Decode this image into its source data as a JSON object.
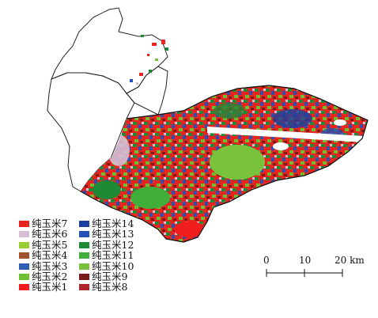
{
  "legend": {
    "col1": [
      {
        "label": "纯玉米7",
        "color": "#e8241f"
      },
      {
        "label": "纯玉米6",
        "color": "#d4bfd6"
      },
      {
        "label": "纯玉米5",
        "color": "#9acd32"
      },
      {
        "label": "纯玉米4",
        "color": "#a0522d"
      },
      {
        "label": "纯玉米3",
        "color": "#2f5fb5"
      },
      {
        "label": "纯玉米2",
        "color": "#6cbf30"
      },
      {
        "label": "纯玉米1",
        "color": "#f21d1d"
      }
    ],
    "col2": [
      {
        "label": "纯玉米14",
        "color": "#1d3f9f"
      },
      {
        "label": "纯玉米13",
        "color": "#2552b8"
      },
      {
        "label": "纯玉米12",
        "color": "#1f8a36"
      },
      {
        "label": "纯玉米11",
        "color": "#3fae3b"
      },
      {
        "label": "纯玉米10",
        "color": "#78c23c"
      },
      {
        "label": "纯玉米9",
        "color": "#7b1c1c"
      },
      {
        "label": "纯玉米8",
        "color": "#b0222a"
      }
    ]
  },
  "scale_bar": {
    "ticks": [
      "0",
      "10",
      "20 km"
    ]
  }
}
